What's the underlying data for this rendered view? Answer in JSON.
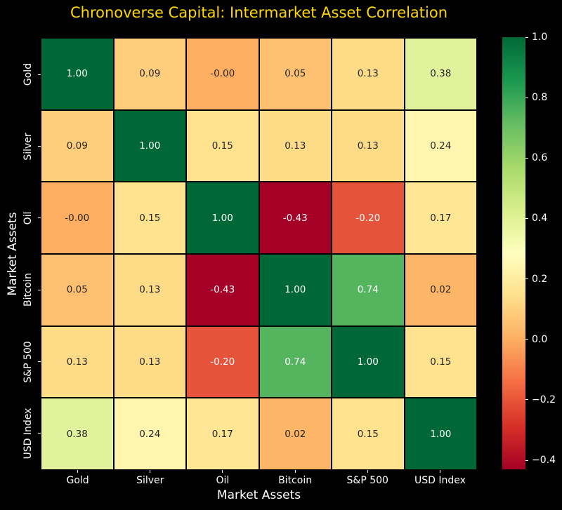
{
  "title": {
    "text": "Chronoverse Capital: Intermarket Asset Correlation",
    "color": "#ffd700"
  },
  "axes": {
    "x_label": "Market Assets",
    "y_label": "Market Assets",
    "categories": [
      "Gold",
      "Silver",
      "Oil",
      "Bitcoin",
      "S&P 500",
      "USD Index"
    ]
  },
  "chart_data": {
    "type": "heatmap",
    "title": "Chronoverse Capital: Intermarket Asset Correlation",
    "xlabel": "Market Assets",
    "ylabel": "Market Assets",
    "x_categories": [
      "Gold",
      "Silver",
      "Oil",
      "Bitcoin",
      "S&P 500",
      "USD Index"
    ],
    "y_categories": [
      "Gold",
      "Silver",
      "Oil",
      "Bitcoin",
      "S&P 500",
      "USD Index"
    ],
    "matrix": [
      [
        1.0,
        0.09,
        -0.0,
        0.05,
        0.13,
        0.38
      ],
      [
        0.09,
        1.0,
        0.15,
        0.13,
        0.13,
        0.24
      ],
      [
        -0.0,
        0.15,
        1.0,
        -0.43,
        -0.2,
        0.17
      ],
      [
        0.05,
        0.13,
        -0.43,
        1.0,
        0.74,
        0.02
      ],
      [
        0.13,
        0.13,
        -0.2,
        0.74,
        1.0,
        0.15
      ],
      [
        0.38,
        0.24,
        0.17,
        0.02,
        0.15,
        1.0
      ]
    ],
    "cell_labels": [
      [
        "1.00",
        "0.09",
        "-0.00",
        "0.05",
        "0.13",
        "0.38"
      ],
      [
        "0.09",
        "1.00",
        "0.15",
        "0.13",
        "0.13",
        "0.24"
      ],
      [
        "-0.00",
        "0.15",
        "1.00",
        "-0.43",
        "-0.20",
        "0.17"
      ],
      [
        "0.05",
        "0.13",
        "-0.43",
        "1.00",
        "0.74",
        "0.02"
      ],
      [
        "0.13",
        "0.13",
        "-0.20",
        "0.74",
        "1.00",
        "0.15"
      ],
      [
        "0.38",
        "0.24",
        "0.17",
        "0.02",
        "0.15",
        "1.00"
      ]
    ],
    "cell_colors": [
      [
        "#006837",
        "#fece7c",
        "#fdae61",
        "#fdc070",
        "#fedc87",
        "#e2f29c"
      ],
      [
        "#fece7c",
        "#006837",
        "#fee28e",
        "#fedc87",
        "#fedc87",
        "#fff5af"
      ],
      [
        "#fdae61",
        "#fee28e",
        "#006837",
        "#a50026",
        "#e5533a",
        "#fee695"
      ],
      [
        "#fdc070",
        "#fedc87",
        "#a50026",
        "#006837",
        "#55b55f",
        "#fdb567"
      ],
      [
        "#fedc87",
        "#fedc87",
        "#e5533a",
        "#55b55f",
        "#006837",
        "#fee28e"
      ],
      [
        "#e2f29c",
        "#fff5af",
        "#fee695",
        "#fdb567",
        "#fee28e",
        "#006837"
      ]
    ],
    "cell_text_colors": [
      [
        "#ffffff",
        "#262626",
        "#262626",
        "#262626",
        "#262626",
        "#262626"
      ],
      [
        "#262626",
        "#ffffff",
        "#262626",
        "#262626",
        "#262626",
        "#262626"
      ],
      [
        "#262626",
        "#262626",
        "#ffffff",
        "#ffffff",
        "#ffffff",
        "#262626"
      ],
      [
        "#262626",
        "#262626",
        "#ffffff",
        "#ffffff",
        "#ffffff",
        "#262626"
      ],
      [
        "#262626",
        "#262626",
        "#ffffff",
        "#ffffff",
        "#ffffff",
        "#262626"
      ],
      [
        "#262626",
        "#262626",
        "#262626",
        "#262626",
        "#262626",
        "#ffffff"
      ]
    ],
    "colormap": "RdYlGn",
    "vmin": -0.43,
    "vmax": 1.0,
    "grid_line_color": "#000000",
    "legend_position": "right-colorbar",
    "colorbar_tick_labels": [
      "1.0",
      "0.8",
      "0.6",
      "0.4",
      "0.2",
      "0.0",
      "−0.2",
      "−0.4"
    ],
    "colorbar_tick_values": [
      1.0,
      0.8,
      0.6,
      0.4,
      0.2,
      0.0,
      -0.2,
      -0.4
    ]
  },
  "colorbar": {
    "gradient_top_to_bottom": [
      "#006837",
      "#1a9850",
      "#66bd63",
      "#a6d96a",
      "#d9ef8b",
      "#ffffbf",
      "#fee08b",
      "#fdae61",
      "#f46d43",
      "#d73027",
      "#a50026"
    ]
  },
  "style": {
    "background": "#000000",
    "title_color": "#ffd700",
    "tick_label_color": "#ffffff",
    "annot_dark_color": "#262626",
    "annot_light_color": "#ffffff"
  }
}
